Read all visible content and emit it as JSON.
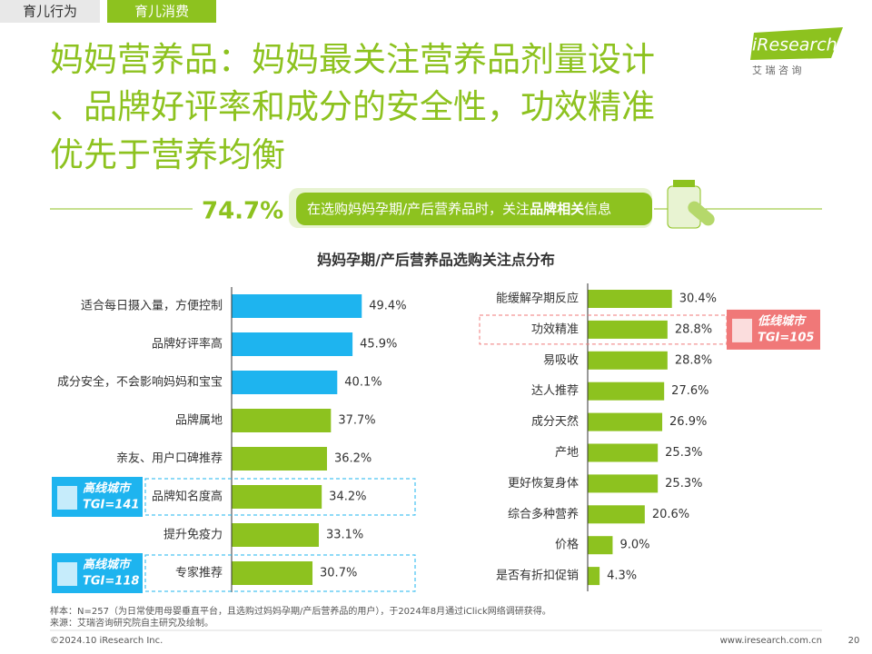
{
  "header": {
    "tabs": [
      "育儿行为",
      "育儿消费"
    ],
    "title_lines": [
      "妈妈营养品：妈妈最关注营养品剂量设计",
      "、品牌好评率和成分的安全性，功效精准",
      "优先于营养均衡"
    ],
    "logo": "iResearch",
    "logo_cn": "艾 瑞 咨 询"
  },
  "banner": {
    "value": "74.7%",
    "text_parts": [
      "在选购妈妈孕期/产后营养品时，关注",
      "品牌相关",
      "信息"
    ]
  },
  "chart_data": [
    {
      "type": "hbar",
      "title": "妈妈孕期/产后营养品选购关注点分布",
      "categories": [
        "适合每日摄入量，方便控制",
        "品牌好评率高",
        "成分安全，不会影响妈妈和宝宝",
        "品牌属地",
        "亲友、用户口碑推荐",
        "品牌知名度高",
        "提升免疫力",
        "专家推荐"
      ],
      "values": [
        49.4,
        45.9,
        40.1,
        37.7,
        36.2,
        34.2,
        33.1,
        30.7
      ],
      "value_labels": [
        "49.4%",
        "45.9%",
        "40.1%",
        "37.7%",
        "36.2%",
        "34.2%",
        "33.1%",
        "30.7%"
      ],
      "colors": [
        "#1eb4ef",
        "#1eb4ef",
        "#1eb4ef",
        "#8dc21f",
        "#8dc21f",
        "#8dc21f",
        "#8dc21f",
        "#8dc21f"
      ],
      "annotations": [
        {
          "category": "品牌知名度高",
          "label": "高线城市",
          "tgi": "TGI=141",
          "color": "#1eb4ef"
        },
        {
          "category": "专家推荐",
          "label": "高线城市",
          "tgi": "TGI=118",
          "color": "#1eb4ef"
        }
      ]
    },
    {
      "type": "hbar",
      "categories": [
        "能缓解孕期反应",
        "功效精准",
        "易吸收",
        "达人推荐",
        "成分天然",
        "产地",
        "更好恢复身体",
        "综合多种营养",
        "价格",
        "是否有折扣促销"
      ],
      "values": [
        30.4,
        28.8,
        28.8,
        27.6,
        26.9,
        25.3,
        25.3,
        20.6,
        9.0,
        4.3
      ],
      "value_labels": [
        "30.4%",
        "28.8%",
        "28.8%",
        "27.6%",
        "26.9%",
        "25.3%",
        "25.3%",
        "20.6%",
        "9.0%",
        "4.3%"
      ],
      "color": "#8dc21f",
      "annotations": [
        {
          "category": "功效精准",
          "label": "低线城市",
          "tgi": "TGI=105",
          "color": "#f07878"
        }
      ]
    }
  ],
  "footer": {
    "notes": [
      "样本：N=257（为日常使用母婴垂直平台，且选购过妈妈孕期/产后营养品的用户），于2024年8月通过iClick网络调研获得。",
      "来源：艾瑞咨询研究院自主研究及绘制。"
    ],
    "copyright": "©2024.10 iResearch Inc.",
    "url": "www.iresearch.com.cn",
    "page": "20"
  }
}
